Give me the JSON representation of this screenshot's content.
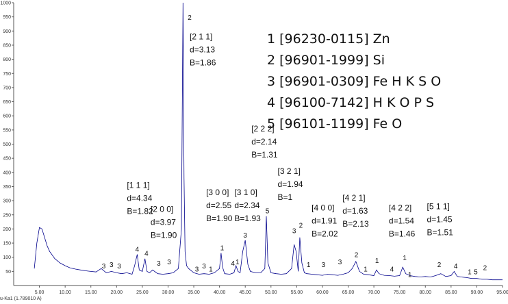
{
  "chart_data": {
    "type": "line",
    "title": "",
    "xlabel": "u-Ka1 (1.789010 A)",
    "ylabel": "",
    "xlim": [
      0,
      95
    ],
    "ylim": [
      0,
      1000
    ],
    "x_ticks": [
      "5.00",
      "10.00",
      "15.00",
      "20.00",
      "25.00",
      "30.00",
      "35.00",
      "40.00",
      "45.00",
      "50.00",
      "55.00",
      "60.00",
      "65.00",
      "70.00",
      "75.00",
      "80.00",
      "85.00",
      "90.00",
      "95.00"
    ],
    "y_ticks": [
      "50",
      "100",
      "150",
      "200",
      "250",
      "300",
      "350",
      "400",
      "450",
      "500",
      "550",
      "600",
      "650",
      "700",
      "750",
      "800",
      "850",
      "900",
      "950",
      "1000"
    ],
    "line_color": "#00008b",
    "series": [
      {
        "x": [
          4.0,
          4.5,
          5.0,
          5.5,
          6.0,
          6.5,
          7.0,
          8.0,
          9.0,
          10.0,
          11.0,
          12.0,
          13.0,
          14.0,
          15.0,
          16.0,
          17.0,
          18.0,
          19.0,
          20.0,
          21.0,
          22.0,
          23.0,
          23.5,
          24.0,
          24.4,
          25.0,
          25.5,
          25.9,
          26.4,
          27.0,
          28.0,
          29.0,
          30.0,
          31.0,
          32.0,
          32.6,
          32.9,
          33.0,
          33.1,
          33.3,
          33.6,
          34.0,
          35.0,
          36.0,
          37.0,
          38.0,
          39.0,
          40.0,
          40.3,
          40.6,
          41.0,
          42.0,
          42.8,
          43.2,
          43.6,
          44.0,
          44.5,
          45.0,
          45.5,
          46.0,
          47.0,
          48.0,
          48.8,
          49.1,
          49.4,
          50.0,
          51.0,
          52.0,
          53.0,
          54.0,
          54.5,
          54.9,
          55.3,
          55.6,
          56.0,
          56.5,
          57.0,
          58.0,
          59.0,
          60.0,
          61.0,
          62.0,
          63.0,
          64.0,
          65.0,
          65.8,
          66.5,
          67.2,
          68.0,
          69.0,
          70.0,
          70.5,
          71.0,
          72.0,
          73.0,
          74.0,
          75.0,
          75.6,
          76.2,
          77.0,
          78.0,
          79.0,
          80.0,
          81.0,
          82.0,
          83.0,
          84.0,
          85.0,
          85.6,
          86.2,
          87.0,
          88.0,
          89.0,
          90.0,
          91.0,
          92.0,
          93.0,
          94.0,
          95.0
        ],
        "y": [
          60,
          150,
          205,
          200,
          170,
          140,
          120,
          95,
          80,
          70,
          62,
          58,
          55,
          52,
          50,
          48,
          60,
          45,
          50,
          45,
          42,
          45,
          40,
          70,
          110,
          55,
          50,
          95,
          50,
          45,
          55,
          42,
          40,
          42,
          45,
          60,
          200,
          1000,
          700,
          380,
          120,
          70,
          60,
          45,
          40,
          42,
          40,
          45,
          60,
          115,
          65,
          42,
          40,
          45,
          70,
          50,
          45,
          120,
          160,
          75,
          50,
          45,
          45,
          60,
          245,
          80,
          45,
          42,
          40,
          42,
          60,
          145,
          120,
          50,
          170,
          80,
          45,
          42,
          40,
          38,
          36,
          40,
          38,
          36,
          40,
          45,
          60,
          85,
          50,
          40,
          38,
          35,
          55,
          42,
          36,
          35,
          33,
          35,
          65,
          42,
          35,
          32,
          30,
          32,
          30,
          35,
          42,
          32,
          35,
          50,
          32,
          30,
          28,
          25,
          25,
          22,
          22,
          20,
          20,
          20
        ]
      }
    ],
    "peak_labels": [
      {
        "text": "3",
        "x": 17.5,
        "y": 60
      },
      {
        "text": "3",
        "x": 19.0,
        "y": 65
      },
      {
        "text": "3",
        "x": 20.5,
        "y": 60
      },
      {
        "text": "4",
        "x": 24.0,
        "y": 120
      },
      {
        "text": "4",
        "x": 25.8,
        "y": 105
      },
      {
        "text": "3",
        "x": 28.2,
        "y": 70
      },
      {
        "text": "3",
        "x": 30.2,
        "y": 75
      },
      {
        "text": "2",
        "x": 34.2,
        "y": 940
      },
      {
        "text": "3",
        "x": 35.6,
        "y": 50
      },
      {
        "text": "3",
        "x": 37.0,
        "y": 60
      },
      {
        "text": "1",
        "x": 38.3,
        "y": 50
      },
      {
        "text": "1",
        "x": 40.5,
        "y": 125
      },
      {
        "text": "4",
        "x": 42.6,
        "y": 70
      },
      {
        "text": "1",
        "x": 43.5,
        "y": 75
      },
      {
        "text": "3",
        "x": 45.0,
        "y": 170
      },
      {
        "text": "5",
        "x": 49.3,
        "y": 255
      },
      {
        "text": "3",
        "x": 54.5,
        "y": 185
      },
      {
        "text": "2",
        "x": 55.8,
        "y": 205
      },
      {
        "text": "1",
        "x": 57.3,
        "y": 65
      },
      {
        "text": "3",
        "x": 60.2,
        "y": 65
      },
      {
        "text": "3",
        "x": 63.4,
        "y": 75
      },
      {
        "text": "2",
        "x": 66.6,
        "y": 100
      },
      {
        "text": "1",
        "x": 68.4,
        "y": 50
      },
      {
        "text": "1",
        "x": 70.6,
        "y": 80
      },
      {
        "text": "4",
        "x": 73.5,
        "y": 50
      },
      {
        "text": "1",
        "x": 76.0,
        "y": 90
      },
      {
        "text": "1",
        "x": 77.0,
        "y": 30
      },
      {
        "text": "2",
        "x": 82.7,
        "y": 65
      },
      {
        "text": "4",
        "x": 85.9,
        "y": 60
      },
      {
        "text": "1",
        "x": 88.6,
        "y": 40
      },
      {
        "text": "5",
        "x": 89.8,
        "y": 40
      },
      {
        "text": "2",
        "x": 91.6,
        "y": 55
      }
    ],
    "annotations": [
      {
        "lines": [
          "[1 1 1]",
          "d=4.34",
          "B=1.82"
        ],
        "x": 22.0,
        "y": 345
      },
      {
        "lines": [
          "[2 0 0]",
          "d=3.97",
          "B=1.90"
        ],
        "x": 26.6,
        "y": 260
      },
      {
        "lines": [
          "[2 1 1]",
          "d=3.13",
          "B=1.86"
        ],
        "x": 34.2,
        "y": 870
      },
      {
        "lines": [
          "[3 0 0]",
          "d=2.55",
          "B=1.90"
        ],
        "x": 37.4,
        "y": 320
      },
      {
        "lines": [
          "[3 1 0]",
          "d=2.34",
          "B=1.93"
        ],
        "x": 42.9,
        "y": 320
      },
      {
        "lines": [
          "[2 2 2]",
          "d=2.14",
          "B=1.31"
        ],
        "x": 46.2,
        "y": 545
      },
      {
        "lines": [
          "[3 2 1]",
          "d=1.94",
          "B=1"
        ],
        "x": 51.3,
        "y": 395
      },
      {
        "lines": [
          "[4 0 0]",
          "d=1.91",
          "B=2.02"
        ],
        "x": 57.9,
        "y": 265
      },
      {
        "lines": [
          "[4 2 1]",
          "d=1.63",
          "B=2.13"
        ],
        "x": 63.9,
        "y": 300
      },
      {
        "lines": [
          "[4 2 2]",
          "d=1.54",
          "B=1.46"
        ],
        "x": 72.9,
        "y": 265
      },
      {
        "lines": [
          "[5 1 1]",
          "d=1.45",
          "B=1.51"
        ],
        "x": 80.3,
        "y": 270
      }
    ],
    "legend": [
      "1 [96230-0115] Zn",
      "2 [96901-1999] Si",
      "3 [96901-0309] Fe H K S O",
      "4 [96100-7142] H K O P S",
      "5 [96101-1199] Fe O"
    ]
  }
}
